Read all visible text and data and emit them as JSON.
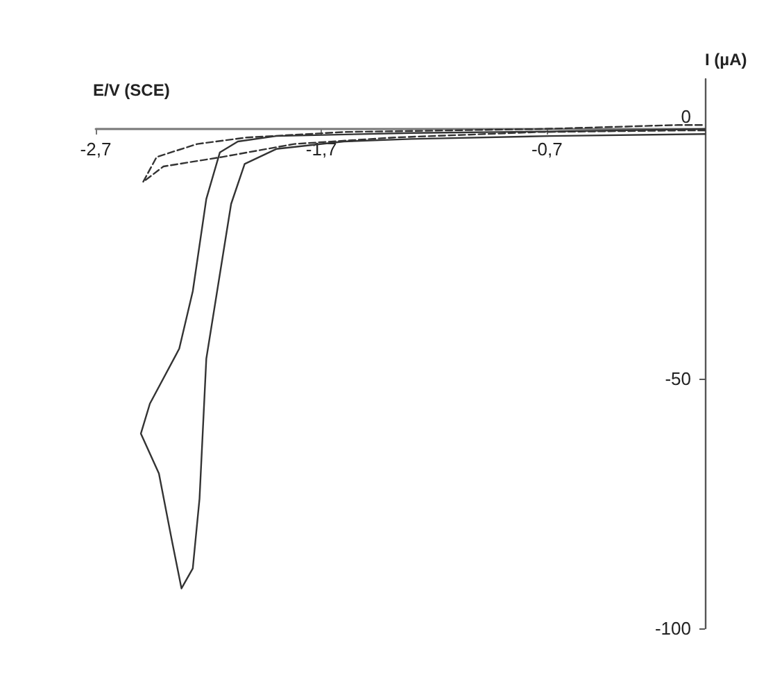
{
  "chart_data": {
    "type": "line",
    "xlabel": "E/V (SCE)",
    "ylabel": "I (µA)",
    "xlim": [
      -2.7,
      0
    ],
    "ylim": [
      -100,
      10
    ],
    "xticks": [
      {
        "value": -2.7,
        "label": "-2,7"
      },
      {
        "value": -1.7,
        "label": "-1,7"
      },
      {
        "value": -0.7,
        "label": "-0,7"
      }
    ],
    "yticks": [
      0,
      -50,
      -100
    ],
    "grid": false,
    "marker": "none",
    "series": [
      {
        "color": "#333333",
        "line_style": "solid",
        "x": [
          0,
          -0.69,
          -1.3,
          -1.6,
          -1.9,
          -2.04,
          -2.1,
          -2.21,
          -2.24,
          -2.27,
          -2.32,
          -2.36,
          -2.42,
          -2.5,
          -2.46,
          -2.33,
          -2.27,
          -2.21,
          -2.15,
          -2.07,
          -1.9,
          -1.3,
          -0.69,
          0
        ],
        "values": [
          -1,
          -1.4,
          -2,
          -2.5,
          -4,
          -7,
          -15,
          -46,
          -74,
          -88,
          -92,
          -83,
          -69,
          -61,
          -55,
          -44,
          -32.5,
          -14,
          -4.7,
          -2.5,
          -1.4,
          -0.8,
          -0.5,
          0
        ]
      },
      {
        "color": "#333333",
        "line_style": "dashed",
        "x": [
          0,
          -0.12,
          -0.73,
          -1.38,
          -1.82,
          -2.14,
          -2.4,
          -2.49,
          -2.43,
          -2.25,
          -2.03,
          -1.6,
          -0.73,
          -0.12,
          0
        ],
        "values": [
          -0.3,
          -0.3,
          -0.6,
          -1.7,
          -3,
          -5.6,
          -7.5,
          -10.6,
          -5.6,
          -3,
          -1.7,
          -0.6,
          0,
          0.8,
          0.8
        ]
      }
    ]
  }
}
